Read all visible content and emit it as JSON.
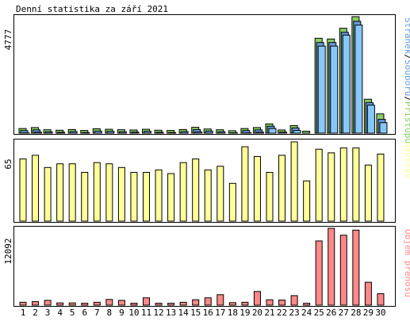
{
  "title": "Denní statistika za září 2021",
  "days": [
    "1",
    "2",
    "3",
    "4",
    "5",
    "6",
    "7",
    "8",
    "9",
    "10",
    "11",
    "12",
    "13",
    "14",
    "15",
    "16",
    "17",
    "18",
    "19",
    "20",
    "21",
    "22",
    "23",
    "24",
    "25",
    "26",
    "27",
    "28",
    "29",
    "30"
  ],
  "weekend_days": [
    "4",
    "5",
    "11",
    "12",
    "18",
    "19",
    "25",
    "26"
  ],
  "colors": {
    "hits": "#88cc66",
    "files": "#6699dd",
    "pages": "#88c8f8",
    "visits": "#ffff99",
    "kbytes": "#ff8888",
    "weekend_label": "#66aa22",
    "weekday_label": "#000000",
    "frame": "#000000",
    "grid": "#cccccc"
  },
  "chart_data": [
    {
      "type": "bar",
      "panel": "top",
      "ymax_label": "4777",
      "ylim": [
        0,
        4777
      ],
      "legend_parts": [
        {
          "text": "Stránek",
          "color": "#6699dd"
        },
        {
          "text": "/",
          "color": "#000000"
        },
        {
          "text": "Souborů",
          "color": "#6699dd"
        },
        {
          "text": "/",
          "color": "#000000"
        },
        {
          "text": "Přístupů",
          "color": "#88cc66"
        }
      ],
      "series": [
        {
          "name": "Přístupů",
          "values": [
            190,
            230,
            140,
            120,
            150,
            110,
            180,
            160,
            140,
            130,
            160,
            120,
            110,
            150,
            240,
            170,
            140,
            100,
            190,
            230,
            380,
            130,
            310,
            80,
            3890,
            3860,
            4300,
            4777,
            1390,
            790
          ]
        },
        {
          "name": "Souborů",
          "values": [
            170,
            200,
            120,
            100,
            130,
            90,
            150,
            140,
            120,
            110,
            140,
            100,
            90,
            130,
            210,
            150,
            120,
            80,
            170,
            200,
            350,
            110,
            280,
            60,
            3780,
            3780,
            4200,
            4650,
            1320,
            630
          ]
        },
        {
          "name": "Stránek",
          "values": [
            140,
            170,
            100,
            80,
            110,
            70,
            120,
            110,
            100,
            90,
            110,
            80,
            70,
            110,
            180,
            120,
            100,
            60,
            140,
            170,
            320,
            90,
            240,
            40,
            3700,
            3700,
            4150,
            4560,
            1280,
            560
          ]
        }
      ]
    },
    {
      "type": "bar",
      "panel": "middle",
      "ymax_label": "65",
      "ylim": [
        0,
        65
      ],
      "legend_parts": [
        {
          "text": "Návštěv",
          "color": "#ffff99"
        }
      ],
      "series": [
        {
          "name": "Návštěv",
          "values": [
            51,
            54,
            44,
            47,
            47,
            40,
            48,
            47,
            44,
            40,
            40,
            42,
            39,
            48,
            51,
            42,
            45,
            31,
            61,
            53,
            40,
            54,
            65,
            33,
            59,
            56,
            60,
            60,
            46,
            55
          ]
        }
      ]
    },
    {
      "type": "bar",
      "panel": "bottom",
      "ymax_label": "12092",
      "ylim": [
        0,
        12092
      ],
      "legend_parts": [
        {
          "text": "Objem přenosu",
          "color": "#ff8888"
        }
      ],
      "series": [
        {
          "name": "Objem přenosu",
          "values": [
            450,
            550,
            750,
            350,
            350,
            300,
            450,
            900,
            750,
            300,
            1150,
            300,
            300,
            450,
            850,
            1150,
            1650,
            400,
            450,
            2150,
            850,
            800,
            1500,
            300,
            10100,
            12092,
            11000,
            11800,
            3600,
            1800
          ]
        }
      ]
    }
  ]
}
